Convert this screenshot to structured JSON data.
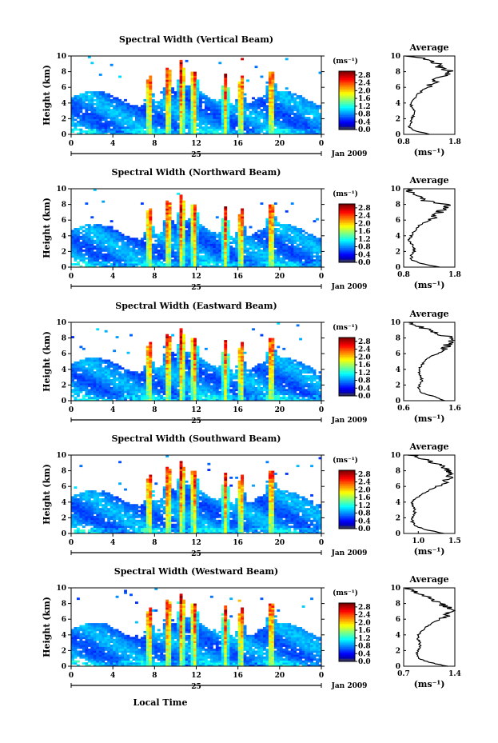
{
  "figure": {
    "xlabel": "Local Time",
    "date_label": "Jan 2009",
    "day_label": "25",
    "colorbar_unit": "(ms⁻¹)",
    "colorbar_ticks": [
      "0.0",
      "0.4",
      "0.8",
      "1.2",
      "1.6",
      "2.0",
      "2.4",
      "2.8"
    ],
    "avg_title": "Average",
    "avg_xlabel": "(ms⁻¹)",
    "ylabel": "Height (km)"
  },
  "chart_data": [
    {
      "type": "heatmap",
      "title": "Spectral Width (Vertical Beam)",
      "xlabel": "",
      "ylabel": "Height (km)",
      "xlim": [
        0,
        24
      ],
      "ylim": [
        0,
        10
      ],
      "x_ticks": [
        "0",
        "4",
        "8",
        "12",
        "16",
        "20",
        "0"
      ],
      "y_ticks": [
        "0",
        "2",
        "4",
        "6",
        "8",
        "10"
      ],
      "colorbar": {
        "range": [
          0.0,
          3.0
        ],
        "unit": "(ms⁻¹)"
      },
      "bursts_hours": [
        7.5,
        9.3,
        10.6,
        11.8,
        14.8,
        16.3,
        19.2
      ],
      "average_profile": {
        "xlim": [
          0.8,
          1.8
        ],
        "x_ticks": [
          "0.8",
          "1.8"
        ],
        "height_km": [
          0,
          0.5,
          1,
          1.5,
          2,
          2.5,
          3,
          3.5,
          4,
          4.5,
          5,
          5.5,
          6,
          6.5,
          7,
          7.5,
          8,
          8.5,
          9,
          9.5,
          10
        ],
        "value": [
          1.3,
          1.0,
          0.9,
          0.95,
          0.95,
          1.0,
          1.0,
          0.95,
          0.95,
          1.0,
          1.05,
          1.15,
          1.25,
          1.35,
          1.45,
          1.6,
          1.75,
          1.5,
          1.45,
          1.3,
          0.9
        ]
      }
    },
    {
      "type": "heatmap",
      "title": "Spectral Width (Northward Beam)",
      "xlabel": "",
      "ylabel": "Height (km)",
      "xlim": [
        0,
        24
      ],
      "ylim": [
        0,
        10
      ],
      "x_ticks": [
        "0",
        "4",
        "8",
        "12",
        "16",
        "20",
        "0"
      ],
      "y_ticks": [
        "0",
        "2",
        "4",
        "6",
        "8",
        "10"
      ],
      "colorbar": {
        "range": [
          0.0,
          3.0
        ],
        "unit": "(ms⁻¹)"
      },
      "bursts_hours": [
        7.5,
        9.3,
        10.6,
        11.8,
        14.8,
        16.3,
        19.2
      ],
      "average_profile": {
        "xlim": [
          0.8,
          1.8
        ],
        "x_ticks": [
          "0.8",
          "1.8"
        ],
        "height_km": [
          0,
          0.5,
          1,
          1.5,
          2,
          2.5,
          3,
          3.5,
          4,
          4.5,
          5,
          5.5,
          6,
          6.5,
          7,
          7.5,
          8,
          8.5,
          9,
          9.5,
          10
        ],
        "value": [
          1.5,
          1.1,
          0.95,
          0.95,
          1.0,
          1.0,
          0.95,
          0.9,
          0.95,
          1.0,
          1.05,
          1.15,
          1.3,
          1.4,
          1.5,
          1.6,
          1.65,
          1.2,
          1.1,
          0.95,
          0.85
        ]
      }
    },
    {
      "type": "heatmap",
      "title": "Spectral Width (Eastward Beam)",
      "xlabel": "",
      "ylabel": "Height (km)",
      "xlim": [
        0,
        24
      ],
      "ylim": [
        0,
        10
      ],
      "x_ticks": [
        "0",
        "4",
        "8",
        "12",
        "16",
        "20",
        "0"
      ],
      "y_ticks": [
        "0",
        "2",
        "4",
        "6",
        "8",
        "10"
      ],
      "colorbar": {
        "range": [
          0.0,
          3.0
        ],
        "unit": "(ms⁻¹)"
      },
      "bursts_hours": [
        7.5,
        9.3,
        10.6,
        11.8,
        14.8,
        16.3,
        19.2
      ],
      "average_profile": {
        "xlim": [
          0.6,
          1.6
        ],
        "x_ticks": [
          "0.6",
          "1.6"
        ],
        "height_km": [
          0,
          0.5,
          1,
          1.5,
          2,
          2.5,
          3,
          3.5,
          4,
          4.5,
          5,
          5.5,
          6,
          6.5,
          7,
          7.5,
          8,
          8.5,
          9,
          9.5,
          10
        ],
        "value": [
          1.4,
          1.2,
          0.95,
          0.9,
          0.9,
          0.95,
          0.95,
          0.9,
          0.9,
          0.95,
          1.0,
          1.1,
          1.25,
          1.35,
          1.45,
          1.5,
          1.55,
          1.3,
          1.1,
          0.9,
          0.7
        ]
      }
    },
    {
      "type": "heatmap",
      "title": "Spectral Width (Southward Beam)",
      "xlabel": "",
      "ylabel": "Height (km)",
      "xlim": [
        0,
        24
      ],
      "ylim": [
        0,
        10
      ],
      "x_ticks": [
        "0",
        "4",
        "8",
        "12",
        "16",
        "20",
        "0"
      ],
      "y_ticks": [
        "0",
        "2",
        "4",
        "6",
        "8",
        "10"
      ],
      "colorbar": {
        "range": [
          0.0,
          3.0
        ],
        "unit": "(ms⁻¹)"
      },
      "bursts_hours": [
        7.5,
        9.3,
        10.6,
        11.8,
        14.8,
        16.3,
        19.2
      ],
      "average_profile": {
        "xlim": [
          0.8,
          1.5
        ],
        "x_ticks": [
          "1.0",
          "1.5"
        ],
        "height_km": [
          0,
          0.5,
          1,
          1.5,
          2,
          2.5,
          3,
          3.5,
          4,
          4.5,
          5,
          5.5,
          6,
          6.5,
          7,
          7.5,
          8,
          8.5,
          9,
          9.5,
          10
        ],
        "value": [
          1.35,
          1.1,
          0.95,
          0.92,
          0.92,
          0.95,
          0.95,
          0.92,
          0.92,
          0.97,
          1.05,
          1.15,
          1.25,
          1.35,
          1.4,
          1.45,
          1.4,
          1.35,
          1.2,
          1.05,
          0.9
        ]
      }
    },
    {
      "type": "heatmap",
      "title": "Spectral Width (Westward Beam)",
      "xlabel": "Local Time",
      "ylabel": "Height (km)",
      "xlim": [
        0,
        24
      ],
      "ylim": [
        0,
        10
      ],
      "x_ticks": [
        "0",
        "4",
        "8",
        "12",
        "16",
        "20",
        "0"
      ],
      "y_ticks": [
        "0",
        "2",
        "4",
        "6",
        "8",
        "10"
      ],
      "colorbar": {
        "range": [
          0.0,
          3.0
        ],
        "unit": "(ms⁻¹)"
      },
      "bursts_hours": [
        7.5,
        9.3,
        10.6,
        11.8,
        14.8,
        16.3,
        19.2
      ],
      "average_profile": {
        "xlim": [
          0.7,
          1.4
        ],
        "x_ticks": [
          "0.7",
          "1.4"
        ],
        "height_km": [
          0,
          0.5,
          1,
          1.5,
          2,
          2.5,
          3,
          3.5,
          4,
          4.5,
          5,
          5.5,
          6,
          6.5,
          7,
          7.5,
          8,
          8.5,
          9,
          9.5,
          10
        ],
        "value": [
          1.3,
          1.05,
          0.9,
          0.88,
          0.9,
          0.92,
          0.92,
          0.9,
          0.9,
          0.95,
          1.0,
          1.1,
          1.2,
          1.3,
          1.35,
          1.3,
          1.2,
          1.1,
          1.0,
          0.85,
          0.75
        ]
      }
    }
  ]
}
